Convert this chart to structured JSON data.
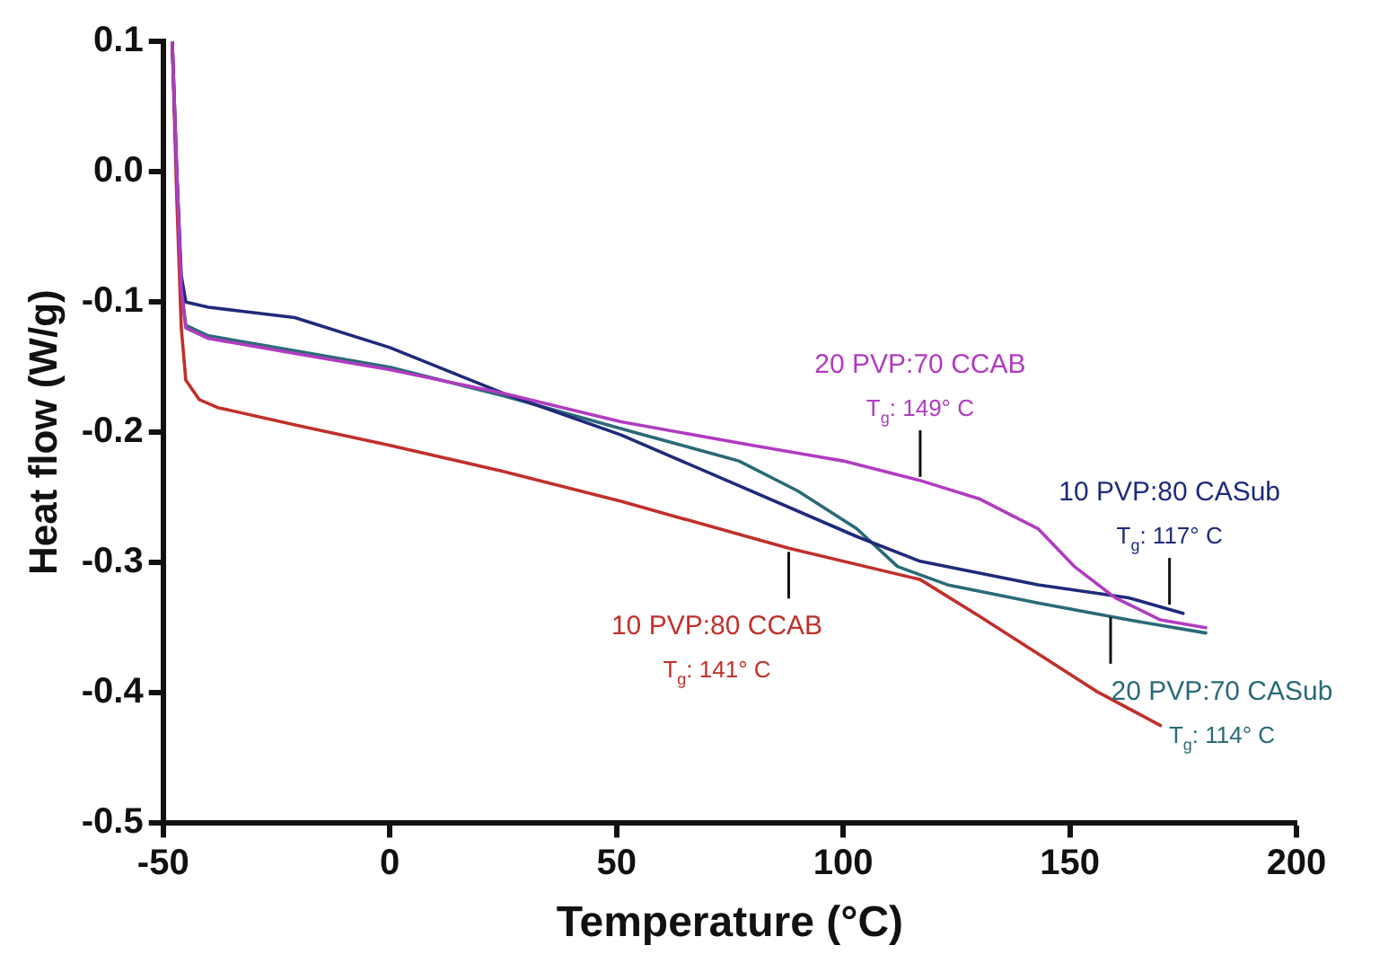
{
  "chart_data": {
    "type": "line",
    "xlabel": "Temperature (°C)",
    "ylabel": "Heat flow (W/g)",
    "xlim": [
      -50,
      200
    ],
    "xticks": [
      -50,
      0,
      50,
      100,
      150,
      200
    ],
    "ylim": [
      -0.5,
      0.1
    ],
    "yticks": [
      {
        "value": -0.5,
        "label": "-0.5"
      },
      {
        "value": -0.4,
        "label": "-0.4"
      },
      {
        "value": -0.3,
        "label": "-0.3"
      },
      {
        "value": -0.2,
        "label": "-0.2"
      },
      {
        "value": -0.1,
        "label": "-0.1"
      },
      {
        "value": 0,
        "label": "0.0"
      },
      {
        "value": 0.1,
        "label": "0.1"
      }
    ],
    "grid": false,
    "legend": false,
    "marker": "none",
    "line_style": "solid",
    "series": [
      {
        "color": "#b03cc0",
        "x": [
          -48,
          -47,
          -46,
          -45,
          -40,
          -30,
          -20,
          0,
          25,
          51,
          80,
          100,
          117,
          130,
          143,
          151,
          160,
          170,
          180
        ],
        "values": [
          0.1,
          0.0,
          -0.09,
          -0.12,
          -0.128,
          -0.134,
          -0.14,
          -0.152,
          -0.17,
          -0.192,
          -0.21,
          -0.222,
          -0.237,
          -0.251,
          -0.274,
          -0.303,
          -0.327,
          -0.344,
          -0.35
        ]
      },
      {
        "color": "#1f2a7a",
        "x": [
          -48,
          -47,
          -46,
          -45,
          -40,
          -33,
          -21,
          0,
          25,
          51,
          77,
          103,
          117,
          143,
          163,
          175
        ],
        "values": [
          0.1,
          0.0,
          -0.08,
          -0.1,
          -0.104,
          -0.107,
          -0.112,
          -0.135,
          -0.17,
          -0.202,
          -0.241,
          -0.28,
          -0.299,
          -0.317,
          -0.327,
          -0.339
        ]
      },
      {
        "color": "#c0302a",
        "x": [
          -48,
          -47,
          -46,
          -45,
          -42,
          -38,
          -20,
          0,
          25,
          51,
          88,
          117,
          130,
          143,
          156,
          170
        ],
        "values": [
          0.1,
          -0.02,
          -0.12,
          -0.16,
          -0.175,
          -0.181,
          -0.195,
          -0.21,
          -0.23,
          -0.253,
          -0.289,
          -0.313,
          -0.341,
          -0.37,
          -0.399,
          -0.425
        ]
      },
      {
        "color": "#2a6a78",
        "x": [
          -48,
          -47,
          -46,
          -45,
          -40,
          -30,
          -20,
          0,
          25,
          55,
          77,
          90,
          103,
          112,
          123,
          143,
          163,
          180
        ],
        "values": [
          0.1,
          0.0,
          -0.09,
          -0.118,
          -0.126,
          -0.132,
          -0.138,
          -0.15,
          -0.172,
          -0.201,
          -0.222,
          -0.245,
          -0.274,
          -0.303,
          -0.317,
          -0.331,
          -0.344,
          -0.354
        ]
      }
    ],
    "annotations": [
      {
        "text": "20 PVP:70 CCAB\nT$_{g}$: 149° C",
        "x": 117,
        "y": -0.237
      },
      {
        "text": "10 PVP:80 CASub\nT$_{g}$: 117° C",
        "x": 172,
        "y": -0.335
      },
      {
        "text": "10 PVP:80 CCAB\nT$_{g}$: 141° C",
        "x": 88,
        "y": -0.289
      },
      {
        "text": "20 PVP:70 CASub\nT$_{g}$: 114° C",
        "x": 159,
        "y": -0.339
      }
    ]
  }
}
